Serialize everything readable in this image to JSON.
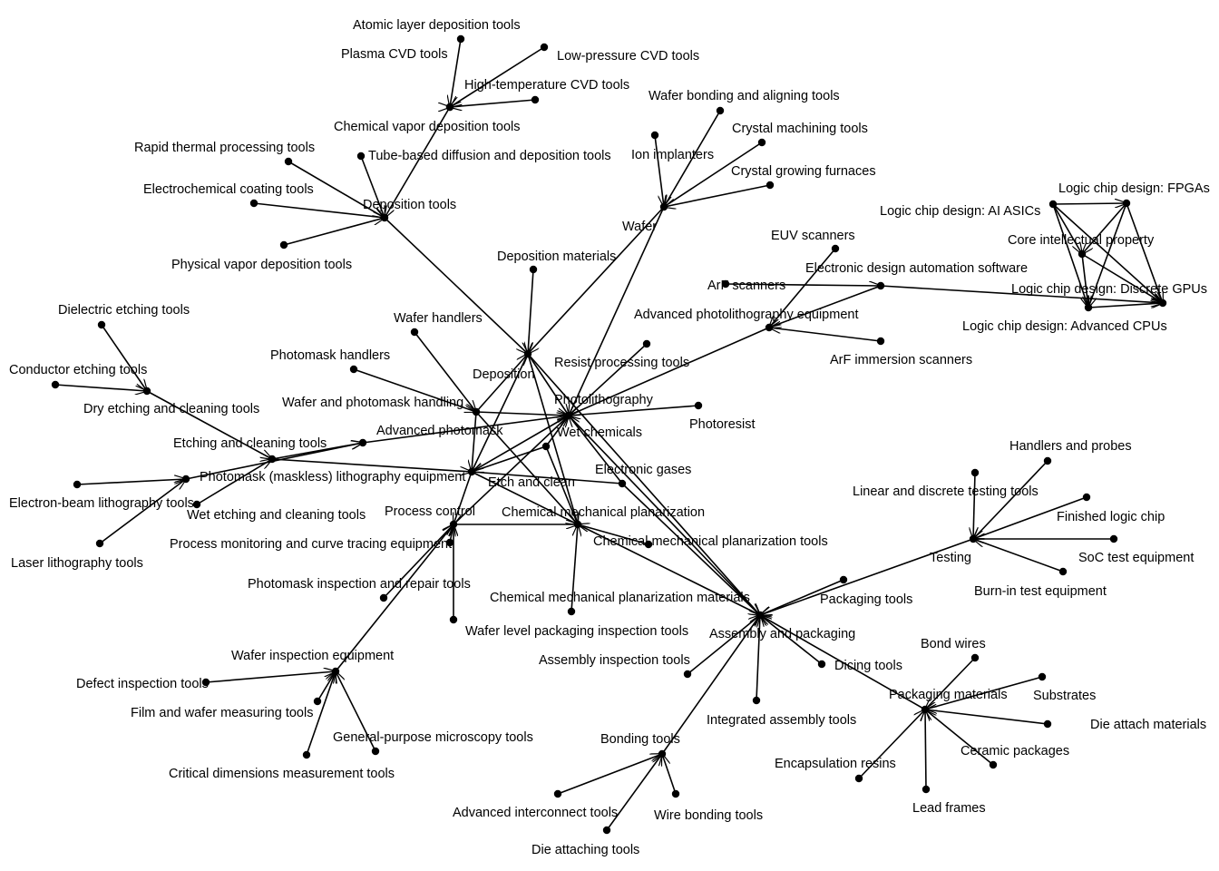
{
  "colors": {
    "edge": "#000000",
    "node": "#000000",
    "label": "#000000",
    "background": "#ffffff"
  },
  "nodes": [
    {
      "id": "ald",
      "label": "Atomic layer deposition tools"
    },
    {
      "id": "pcvd",
      "label": "Plasma CVD tools"
    },
    {
      "id": "lpcvd",
      "label": "Low-pressure CVD tools"
    },
    {
      "id": "htcvd",
      "label": "High-temperature CVD tools"
    },
    {
      "id": "cvd",
      "label": "Chemical vapor deposition tools"
    },
    {
      "id": "rtp",
      "label": "Rapid thermal processing tools"
    },
    {
      "id": "tube",
      "label": "Tube-based diffusion and deposition tools"
    },
    {
      "id": "ecoat",
      "label": "Electrochemical coating tools"
    },
    {
      "id": "deptools",
      "label": "Deposition tools"
    },
    {
      "id": "pvd",
      "label": "Physical vapor deposition tools"
    },
    {
      "id": "bonding_align",
      "label": "Wafer bonding and aligning tools"
    },
    {
      "id": "crystal_mach",
      "label": "Crystal machining tools"
    },
    {
      "id": "ion",
      "label": "Ion implanters"
    },
    {
      "id": "crystal_grow",
      "label": "Crystal growing furnaces"
    },
    {
      "id": "wafer",
      "label": "Wafer"
    },
    {
      "id": "fpga",
      "label": "Logic chip design: FPGAs"
    },
    {
      "id": "asic",
      "label": "Logic chip design: AI ASICs"
    },
    {
      "id": "core_ip",
      "label": "Core intellectual property"
    },
    {
      "id": "gpu",
      "label": "Logic chip design: Discrete GPUs"
    },
    {
      "id": "cpu",
      "label": "Logic chip design: Advanced CPUs"
    },
    {
      "id": "euv",
      "label": "EUV scanners"
    },
    {
      "id": "eda",
      "label": "Electronic design automation software"
    },
    {
      "id": "arf",
      "label": "ArF scanners"
    },
    {
      "id": "adv_photo",
      "label": "Advanced photolithography equipment"
    },
    {
      "id": "arf_imm",
      "label": "ArF immersion scanners"
    },
    {
      "id": "dep_mat",
      "label": "Deposition materials"
    },
    {
      "id": "deposition",
      "label": "Deposition"
    },
    {
      "id": "wafer_handlers",
      "label": "Wafer handlers"
    },
    {
      "id": "resist_proc",
      "label": "Resist processing tools"
    },
    {
      "id": "photomask_handlers",
      "label": "Photomask handlers"
    },
    {
      "id": "photolitho",
      "label": "Photolithography"
    },
    {
      "id": "wp_handling",
      "label": "Wafer and photomask handling"
    },
    {
      "id": "photoresist",
      "label": "Photoresist"
    },
    {
      "id": "wet_chem",
      "label": "Wet chemicals"
    },
    {
      "id": "adv_mask",
      "label": "Advanced photomask"
    },
    {
      "id": "diel_etch",
      "label": "Dielectric etching tools"
    },
    {
      "id": "cond_etch",
      "label": "Conductor etching tools"
    },
    {
      "id": "dry_etch",
      "label": "Dry etching and cleaning tools"
    },
    {
      "id": "etch_tools",
      "label": "Etching and cleaning tools"
    },
    {
      "id": "maskless",
      "label": "Photomask (maskless) lithography equipment"
    },
    {
      "id": "etch_clean",
      "label": "Etch and clean"
    },
    {
      "id": "egases",
      "label": "Electronic gases"
    },
    {
      "id": "ebeam",
      "label": "Electron-beam lithography tools"
    },
    {
      "id": "wet_etch",
      "label": "Wet etching and cleaning tools"
    },
    {
      "id": "process_ctrl",
      "label": "Process control"
    },
    {
      "id": "cmp",
      "label": "Chemical mechanical planarization"
    },
    {
      "id": "laser",
      "label": "Laser lithography tools"
    },
    {
      "id": "proc_mon",
      "label": "Process monitoring and curve tracing equipment"
    },
    {
      "id": "cmp_tools",
      "label": "Chemical mechanical planarization tools"
    },
    {
      "id": "mask_insp",
      "label": "Photomask inspection and repair tools"
    },
    {
      "id": "cmp_mat",
      "label": "Chemical mechanical planarization materials"
    },
    {
      "id": "wlp_insp",
      "label": "Wafer level packaging inspection tools"
    },
    {
      "id": "handlers_probes",
      "label": "Handlers and probes"
    },
    {
      "id": "linear_test",
      "label": "Linear and discrete testing tools"
    },
    {
      "id": "finished_logic",
      "label": "Finished logic chip"
    },
    {
      "id": "testing",
      "label": "Testing"
    },
    {
      "id": "soc_test",
      "label": "SoC test equipment"
    },
    {
      "id": "burnin",
      "label": "Burn-in test equipment"
    },
    {
      "id": "pkg_tools",
      "label": "Packaging tools"
    },
    {
      "id": "assembly",
      "label": "Assembly and packaging"
    },
    {
      "id": "asm_insp",
      "label": "Assembly inspection tools"
    },
    {
      "id": "wafer_insp",
      "label": "Wafer inspection equipment"
    },
    {
      "id": "dicing",
      "label": "Dicing tools"
    },
    {
      "id": "bond_wires",
      "label": "Bond wires"
    },
    {
      "id": "defect_insp",
      "label": "Defect inspection tools"
    },
    {
      "id": "pkg_mat",
      "label": "Packaging materials"
    },
    {
      "id": "substrates",
      "label": "Substrates"
    },
    {
      "id": "film_meas",
      "label": "Film and wafer measuring tools"
    },
    {
      "id": "integ_asm",
      "label": "Integrated assembly tools"
    },
    {
      "id": "die_attach_mat",
      "label": "Die attach materials"
    },
    {
      "id": "gp_micro",
      "label": "General-purpose microscopy tools"
    },
    {
      "id": "bonding_tools",
      "label": "Bonding tools"
    },
    {
      "id": "ceramic",
      "label": "Ceramic packages"
    },
    {
      "id": "encap",
      "label": "Encapsulation resins"
    },
    {
      "id": "cd_meas",
      "label": "Critical dimensions measurement tools"
    },
    {
      "id": "adv_interconnect",
      "label": "Advanced interconnect tools"
    },
    {
      "id": "wire_bond",
      "label": "Wire bonding tools"
    },
    {
      "id": "lead_frames",
      "label": "Lead frames"
    },
    {
      "id": "die_attaching",
      "label": "Die attaching tools"
    }
  ],
  "edges": [
    [
      "ald",
      "cvd"
    ],
    [
      "pcvd",
      "cvd"
    ],
    [
      "lpcvd",
      "cvd"
    ],
    [
      "htcvd",
      "cvd"
    ],
    [
      "cvd",
      "deptools"
    ],
    [
      "rtp",
      "deptools"
    ],
    [
      "tube",
      "deptools"
    ],
    [
      "ecoat",
      "deptools"
    ],
    [
      "pvd",
      "deptools"
    ],
    [
      "deptools",
      "deposition"
    ],
    [
      "dep_mat",
      "deposition"
    ],
    [
      "bonding_align",
      "wafer"
    ],
    [
      "crystal_mach",
      "wafer"
    ],
    [
      "ion",
      "wafer"
    ],
    [
      "crystal_grow",
      "wafer"
    ],
    [
      "wafer",
      "deposition"
    ],
    [
      "wafer",
      "photolitho"
    ],
    [
      "euv",
      "adv_photo"
    ],
    [
      "arf",
      "eda"
    ],
    [
      "arf_imm",
      "adv_photo"
    ],
    [
      "eda",
      "adv_photo"
    ],
    [
      "adv_photo",
      "photolitho"
    ],
    [
      "asic",
      "core_ip"
    ],
    [
      "asic",
      "cpu"
    ],
    [
      "asic",
      "gpu"
    ],
    [
      "asic",
      "fpga"
    ],
    [
      "fpga",
      "core_ip"
    ],
    [
      "fpga",
      "gpu"
    ],
    [
      "fpga",
      "cpu"
    ],
    [
      "core_ip",
      "cpu"
    ],
    [
      "core_ip",
      "gpu"
    ],
    [
      "cpu",
      "gpu"
    ],
    [
      "eda",
      "gpu"
    ],
    [
      "wafer_handlers",
      "wp_handling"
    ],
    [
      "photomask_handlers",
      "wp_handling"
    ],
    [
      "wp_handling",
      "deposition"
    ],
    [
      "wp_handling",
      "photolitho"
    ],
    [
      "wp_handling",
      "etch_clean"
    ],
    [
      "wp_handling",
      "cmp"
    ],
    [
      "resist_proc",
      "photolitho"
    ],
    [
      "photoresist",
      "photolitho"
    ],
    [
      "deposition",
      "photolitho"
    ],
    [
      "deposition",
      "etch_clean"
    ],
    [
      "deposition",
      "cmp"
    ],
    [
      "deposition",
      "assembly"
    ],
    [
      "diel_etch",
      "dry_etch"
    ],
    [
      "cond_etch",
      "dry_etch"
    ],
    [
      "dry_etch",
      "etch_tools"
    ],
    [
      "etch_tools",
      "etch_clean"
    ],
    [
      "etch_tools",
      "adv_mask"
    ],
    [
      "adv_mask",
      "photolitho"
    ],
    [
      "ebeam",
      "maskless"
    ],
    [
      "laser",
      "maskless"
    ],
    [
      "maskless",
      "adv_mask"
    ],
    [
      "wet_etch",
      "etch_tools"
    ],
    [
      "wet_chem",
      "photolitho"
    ],
    [
      "wet_chem",
      "etch_clean"
    ],
    [
      "wet_chem",
      "cmp"
    ],
    [
      "egases",
      "etch_clean"
    ],
    [
      "egases",
      "assembly"
    ],
    [
      "egases",
      "photolitho"
    ],
    [
      "etch_clean",
      "photolitho"
    ],
    [
      "etch_clean",
      "process_ctrl"
    ],
    [
      "etch_clean",
      "cmp"
    ],
    [
      "process_ctrl",
      "photolitho"
    ],
    [
      "process_ctrl",
      "cmp"
    ],
    [
      "proc_mon",
      "process_ctrl"
    ],
    [
      "mask_insp",
      "process_ctrl"
    ],
    [
      "wlp_insp",
      "process_ctrl"
    ],
    [
      "wafer_insp",
      "process_ctrl"
    ],
    [
      "cmp_tools",
      "cmp"
    ],
    [
      "cmp_mat",
      "cmp"
    ],
    [
      "cmp",
      "assembly"
    ],
    [
      "photolitho",
      "assembly"
    ],
    [
      "defect_insp",
      "wafer_insp"
    ],
    [
      "film_meas",
      "wafer_insp"
    ],
    [
      "gp_micro",
      "wafer_insp"
    ],
    [
      "cd_meas",
      "wafer_insp"
    ],
    [
      "handlers_probes",
      "testing"
    ],
    [
      "linear_test",
      "testing"
    ],
    [
      "finished_logic",
      "testing"
    ],
    [
      "soc_test",
      "testing"
    ],
    [
      "burnin",
      "testing"
    ],
    [
      "testing",
      "assembly"
    ],
    [
      "pkg_tools",
      "assembly"
    ],
    [
      "asm_insp",
      "assembly"
    ],
    [
      "dicing",
      "assembly"
    ],
    [
      "integ_asm",
      "assembly"
    ],
    [
      "pkg_mat",
      "assembly"
    ],
    [
      "bonding_tools",
      "assembly"
    ],
    [
      "bond_wires",
      "pkg_mat"
    ],
    [
      "substrates",
      "pkg_mat"
    ],
    [
      "die_attach_mat",
      "pkg_mat"
    ],
    [
      "ceramic",
      "pkg_mat"
    ],
    [
      "encap",
      "pkg_mat"
    ],
    [
      "lead_frames",
      "pkg_mat"
    ],
    [
      "adv_interconnect",
      "bonding_tools"
    ],
    [
      "wire_bond",
      "bonding_tools"
    ],
    [
      "die_attaching",
      "bonding_tools"
    ]
  ]
}
